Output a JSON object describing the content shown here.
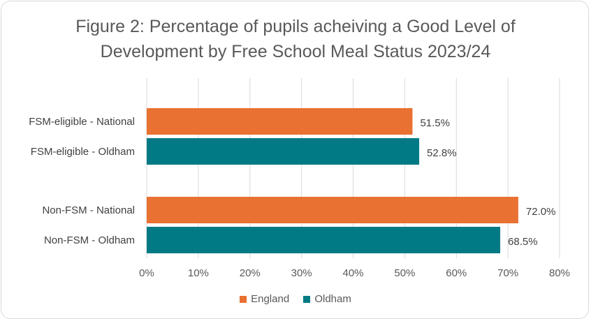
{
  "chart_data": {
    "type": "bar",
    "orientation": "horizontal",
    "title": "Figure 2: Percentage of pupils acheiving a Good Level of Development by Free School Meal Status 2023/24",
    "title_lines": [
      "Figure 2: Percentage of pupils acheiving a Good Level of",
      "Development by Free School Meal Status 2023/24"
    ],
    "categories": [
      "FSM-eligible - National",
      "FSM-eligible - Oldham",
      "Non-FSM - National",
      "Non-FSM - Oldham"
    ],
    "values": [
      51.5,
      52.8,
      72.0,
      68.5
    ],
    "data_labels": [
      "51.5%",
      "52.8%",
      "72.0%",
      "68.5%"
    ],
    "bar_series": [
      "England",
      "Oldham",
      "England",
      "Oldham"
    ],
    "xlim": [
      0,
      80
    ],
    "x_ticks": [
      "0%",
      "10%",
      "20%",
      "30%",
      "40%",
      "50%",
      "60%",
      "70%",
      "80%"
    ],
    "grid": true,
    "legend_position": "bottom",
    "legend": [
      {
        "name": "England",
        "color": "#e97132"
      },
      {
        "name": "Oldham",
        "color": "#017a85"
      }
    ]
  }
}
